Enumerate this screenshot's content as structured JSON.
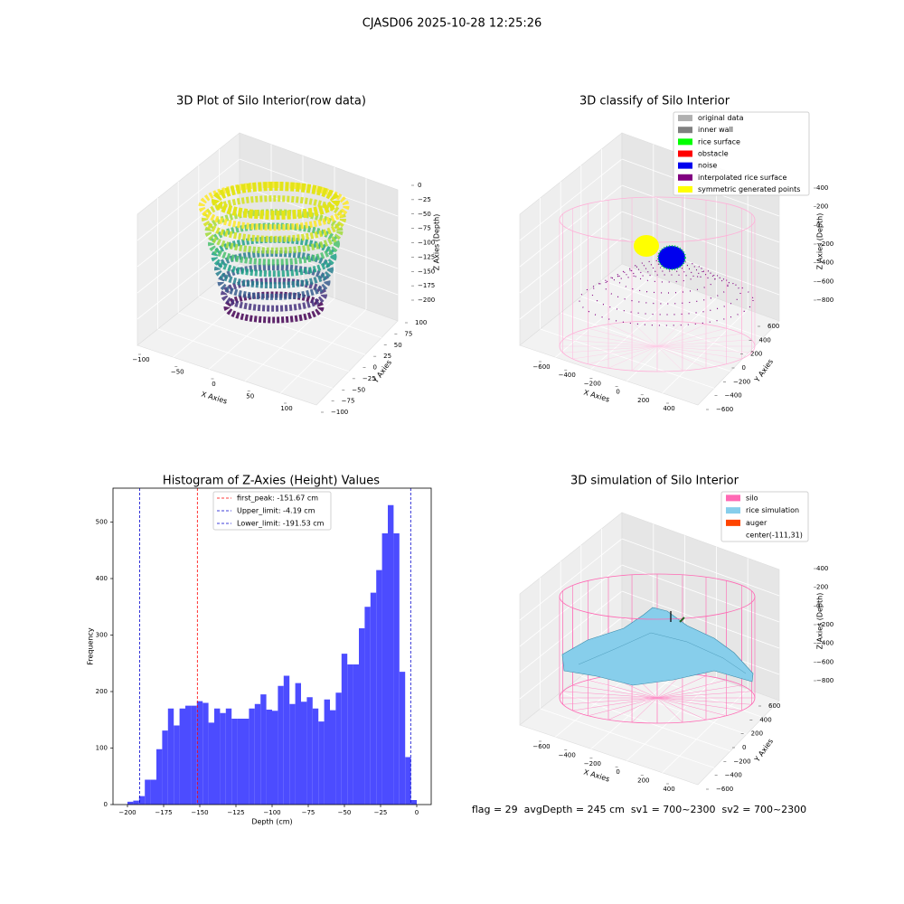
{
  "figure_title": "CJASD06 2025-10-28 12:25:26",
  "chart_data": [
    {
      "type": "scatter3d",
      "title": "3D Plot of Silo Interior(row data)",
      "xlabel": "X Axies",
      "ylabel": "Y Axies",
      "zlabel": "Z Axies (Depth)",
      "xlim": [
        -100,
        100
      ],
      "ylim": [
        -100,
        100
      ],
      "zlim": [
        -200,
        0
      ],
      "xticks": [
        {
          "value": -100,
          "label": "−100"
        },
        {
          "value": -50,
          "label": "−50"
        },
        0,
        50,
        100
      ],
      "yticks": [
        {
          "value": -100,
          "label": "−100"
        },
        {
          "value": -75,
          "label": "−75"
        },
        {
          "value": -50,
          "label": "−50"
        },
        {
          "value": -25,
          "label": "−25"
        },
        0,
        25,
        50,
        75,
        100
      ],
      "zticks": [
        {
          "value": -200,
          "label": "−200"
        },
        {
          "value": -175,
          "label": "−175"
        },
        {
          "value": -150,
          "label": "−150"
        },
        {
          "value": -125,
          "label": "−125"
        },
        {
          "value": -100,
          "label": "−100"
        },
        {
          "value": -75,
          "label": "−75"
        },
        {
          "value": -50,
          "label": "−50"
        },
        {
          "value": -25,
          "label": "−25"
        },
        0
      ]
    },
    {
      "type": "scatter3d",
      "title": "3D classify of Silo Interior",
      "xlabel": "X Axies",
      "ylabel": "Y Axies",
      "zlabel": "Z Axies (Depth)",
      "xlim": [
        -600,
        400
      ],
      "ylim": [
        -600,
        600
      ],
      "zlim": [
        -800,
        400
      ],
      "xticks": [
        {
          "value": -600,
          "label": "−600"
        },
        {
          "value": -400,
          "label": "−400"
        },
        {
          "value": -200,
          "label": "−200"
        },
        0,
        200,
        400
      ],
      "yticks": [
        {
          "value": -600,
          "label": "−600"
        },
        {
          "value": -400,
          "label": "−400"
        },
        {
          "value": -200,
          "label": "−200"
        },
        0,
        200,
        400,
        600
      ],
      "zticks": [
        {
          "value": -800,
          "label": "−800"
        },
        {
          "value": -600,
          "label": "−600"
        },
        {
          "value": -400,
          "label": "−400"
        },
        {
          "value": -200,
          "label": "−200"
        },
        0,
        200,
        400
      ],
      "series": [
        {
          "name": "original data",
          "color": "#b0b0b0"
        },
        {
          "name": "inner wall",
          "color": "#808080"
        },
        {
          "name": "rice surface",
          "color": "#00ff00"
        },
        {
          "name": "obstacle",
          "color": "#ff0000"
        },
        {
          "name": "noise",
          "color": "#0000ee"
        },
        {
          "name": "interpolated rice surface",
          "color": "#800080"
        },
        {
          "name": "symmetric generated points",
          "color": "#ffff00"
        }
      ],
      "legend": "upper right"
    },
    {
      "type": "histogram",
      "title": "Histogram of Z-Axies (Height) Values",
      "xlabel": "Depth (cm)",
      "ylabel": "Frequency",
      "color": "#4c4cff",
      "bins": [
        -200,
        -196,
        -192,
        -188,
        -184,
        -180,
        -176,
        -172,
        -168,
        -164,
        -160,
        -156,
        -152,
        -148,
        -144,
        -140,
        -136,
        -132,
        -128,
        -124,
        -120,
        -116,
        -112,
        -108,
        -104,
        -100,
        -96,
        -92,
        -88,
        -84,
        -80,
        -76,
        -72,
        -68,
        -64,
        -60,
        -56,
        -52,
        -48,
        -44,
        -40,
        -36,
        -32,
        -28,
        -24,
        -20,
        -16,
        -12,
        -8,
        -4,
        0
      ],
      "values": [
        5,
        7,
        15,
        44,
        44,
        98,
        131,
        170,
        140,
        170,
        175,
        175,
        183,
        180,
        145,
        170,
        162,
        170,
        152,
        152,
        152,
        170,
        178,
        195,
        168,
        166,
        210,
        228,
        178,
        215,
        182,
        190,
        170,
        147,
        186,
        167,
        198,
        267,
        248,
        248,
        312,
        350,
        375,
        415,
        480,
        530,
        480,
        235,
        84,
        8
      ],
      "xlim": [
        -210,
        10
      ],
      "ylim": [
        0,
        560
      ],
      "xticks": [
        {
          "value": -200,
          "label": "−200"
        },
        {
          "value": -175,
          "label": "−175"
        },
        {
          "value": -150,
          "label": "−150"
        },
        {
          "value": -125,
          "label": "−125"
        },
        {
          "value": -100,
          "label": "−100"
        },
        {
          "value": -75,
          "label": "−75"
        },
        {
          "value": -50,
          "label": "−50"
        },
        {
          "value": -25,
          "label": "−25"
        },
        0
      ],
      "yticks": [
        0,
        100,
        200,
        300,
        400,
        500
      ],
      "vlines": [
        {
          "name": "first_peak: -151.67 cm",
          "value": -151.67,
          "color": "#ff0000"
        },
        {
          "name": "Upper_limit: -4.19 cm",
          "value": -4.19,
          "color": "#0000cc"
        },
        {
          "name": "Lower_limit: -191.53 cm",
          "value": -191.53,
          "color": "#0000cc"
        }
      ],
      "legend": "upper center"
    },
    {
      "type": "surface3d",
      "title": "3D simulation of Silo Interior",
      "xlabel": "X Axies",
      "ylabel": "Y Axies",
      "zlabel": "Z Axies (Depth)",
      "xlim": [
        -600,
        400
      ],
      "ylim": [
        -600,
        600
      ],
      "zlim": [
        -800,
        400
      ],
      "xticks": [
        {
          "value": -600,
          "label": "−600"
        },
        {
          "value": -400,
          "label": "−400"
        },
        {
          "value": -200,
          "label": "−200"
        },
        0,
        200,
        400
      ],
      "yticks": [
        {
          "value": -600,
          "label": "−600"
        },
        {
          "value": -400,
          "label": "−400"
        },
        {
          "value": -200,
          "label": "−200"
        },
        0,
        200,
        400,
        600
      ],
      "zticks": [
        {
          "value": -800,
          "label": "−800"
        },
        {
          "value": -600,
          "label": "−600"
        },
        {
          "value": -400,
          "label": "−400"
        },
        {
          "value": -200,
          "label": "−200"
        },
        0,
        200,
        400
      ],
      "series": [
        {
          "name": "silo",
          "color": "#ff69b4"
        },
        {
          "name": "rice simulation",
          "color": "#87ceeb"
        },
        {
          "name": "auger",
          "color": "#ff4500"
        },
        {
          "name": "center(-111,31)"
        }
      ],
      "legend": "upper right",
      "annotation": "flag = 29  avgDepth = 245 cm  sv1 = 700~2300  sv2 = 700~2300"
    }
  ]
}
